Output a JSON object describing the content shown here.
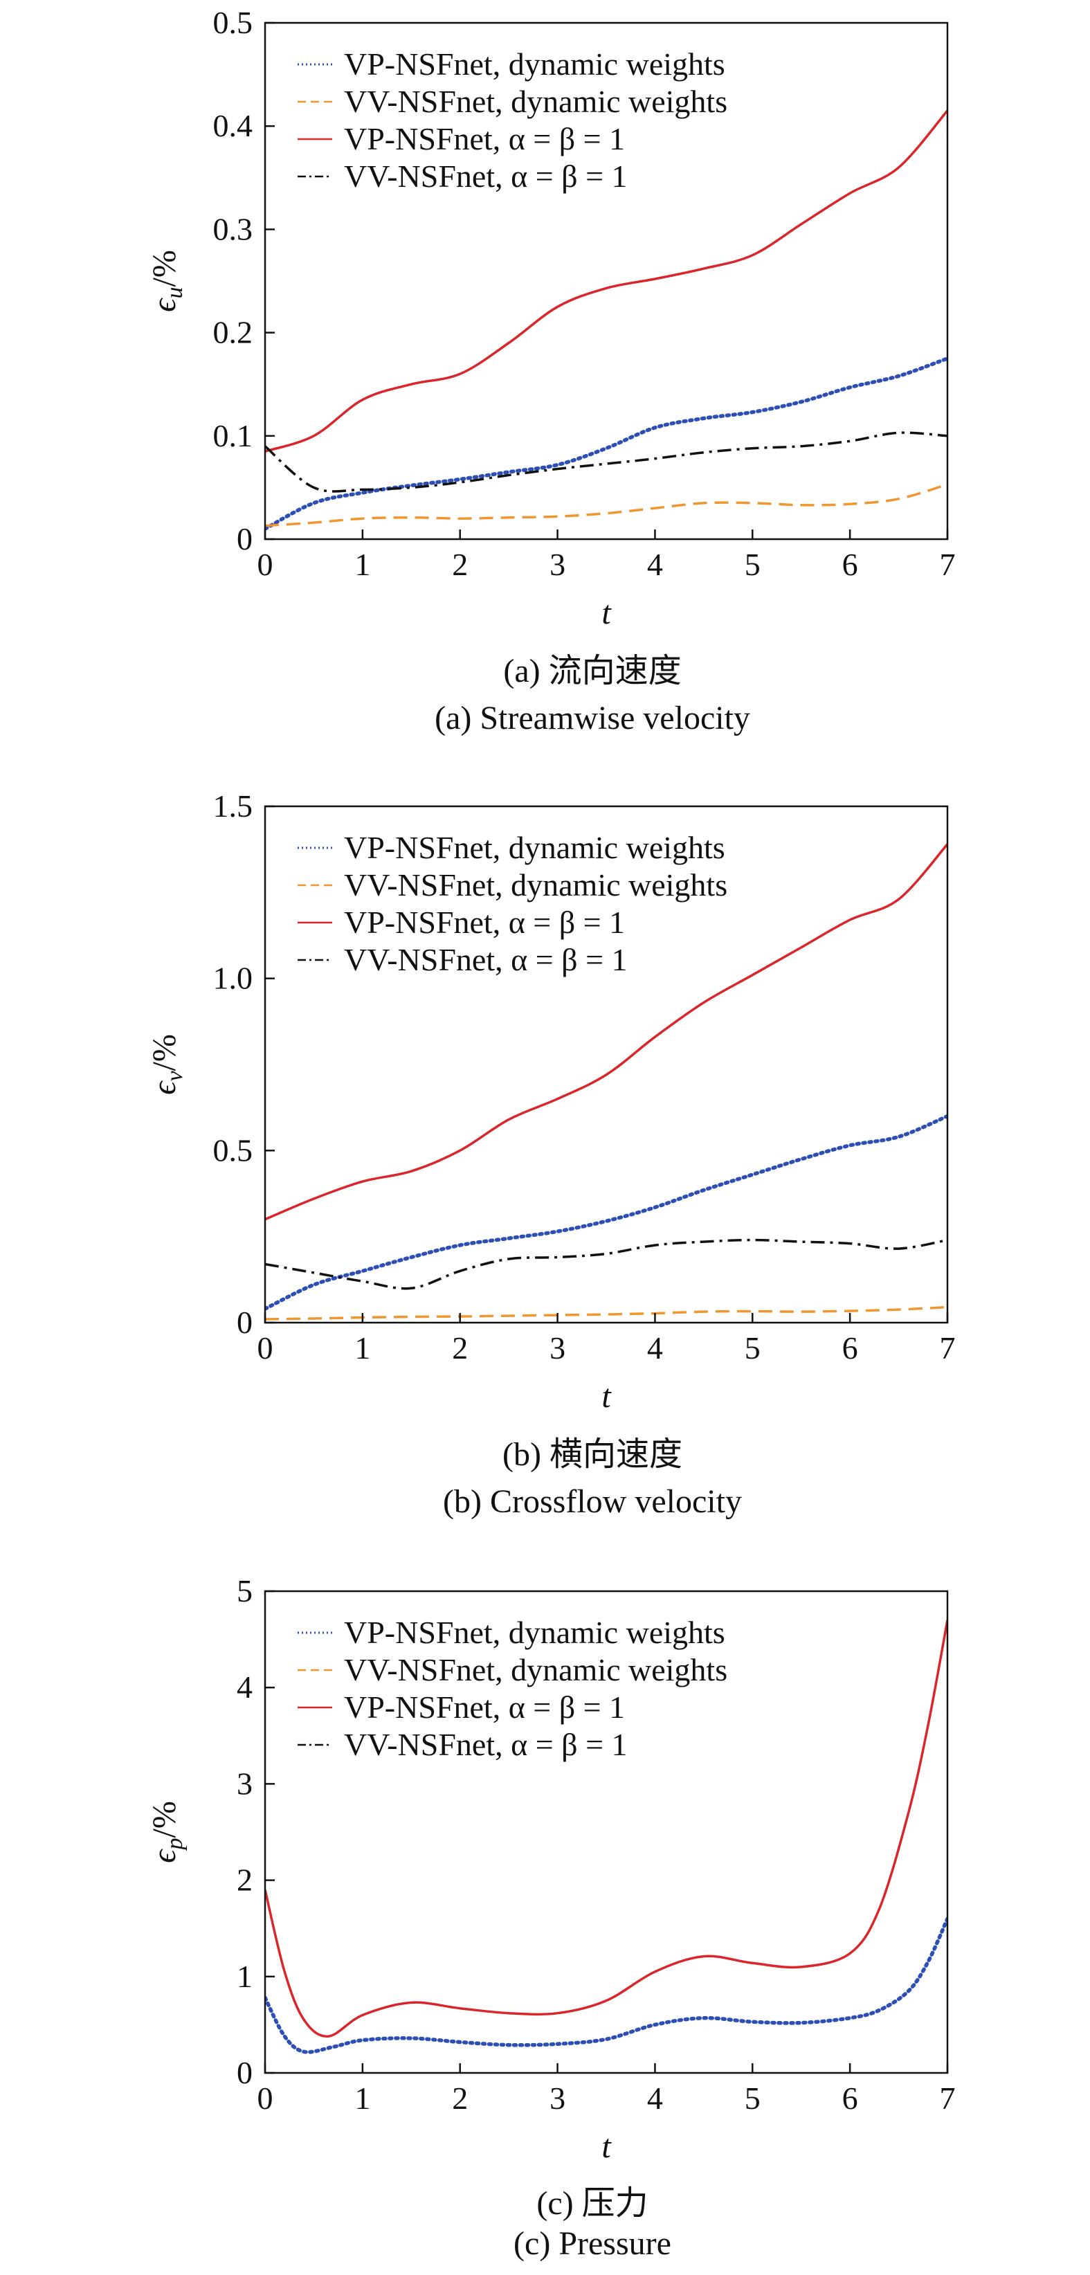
{
  "chart_data": [
    {
      "type": "line",
      "caption_zh": "(a) 流向速度",
      "caption_en": "(a) Streamwise velocity",
      "xlabel": "t",
      "ylabel": "ϵu/%",
      "ylabel_main": "ϵ",
      "ylabel_sub": "u",
      "ylabel_suffix": "/%",
      "xlim": [
        0,
        7
      ],
      "ylim": [
        0,
        0.5
      ],
      "xticks": [
        "0",
        "1",
        "2",
        "3",
        "4",
        "5",
        "6",
        "7"
      ],
      "yticks": [
        "0",
        "0.1",
        "0.2",
        "0.3",
        "0.4",
        "0.5"
      ],
      "grid": false,
      "legend_position": "top-left",
      "series": [
        {
          "name": "VP-NSFnet, dynamic weights",
          "color": "#2d4fb5",
          "style": "dotted",
          "x": [
            0,
            0.5,
            1,
            1.5,
            2,
            2.5,
            3,
            3.5,
            4,
            4.5,
            5,
            5.5,
            6,
            6.5,
            7
          ],
          "y": [
            0.01,
            0.035,
            0.045,
            0.052,
            0.058,
            0.065,
            0.072,
            0.088,
            0.108,
            0.117,
            0.123,
            0.133,
            0.147,
            0.158,
            0.175
          ]
        },
        {
          "name": "VV-NSFnet, dynamic weights",
          "color": "#f0962e",
          "style": "dashed",
          "x": [
            0,
            0.5,
            1,
            1.5,
            2,
            2.5,
            3,
            3.5,
            4,
            4.5,
            5,
            5.5,
            6,
            6.5,
            7
          ],
          "y": [
            0.013,
            0.016,
            0.02,
            0.021,
            0.02,
            0.021,
            0.022,
            0.025,
            0.03,
            0.035,
            0.035,
            0.033,
            0.034,
            0.039,
            0.053
          ]
        },
        {
          "name": "VP-NSFnet, α = β = 1",
          "color": "#d9262b",
          "style": "solid",
          "x": [
            0,
            0.5,
            1,
            1.5,
            2,
            2.5,
            3,
            3.5,
            4,
            4.5,
            5,
            5.5,
            6,
            6.5,
            7
          ],
          "y": [
            0.085,
            0.1,
            0.135,
            0.15,
            0.16,
            0.19,
            0.225,
            0.243,
            0.252,
            0.262,
            0.275,
            0.305,
            0.335,
            0.36,
            0.415
          ]
        },
        {
          "name": "VV-NSFnet, α = β = 1",
          "color": "#111111",
          "style": "dashdot",
          "x": [
            0,
            0.5,
            1,
            1.5,
            2,
            2.5,
            3,
            3.5,
            4,
            4.5,
            5,
            5.5,
            6,
            6.5,
            7
          ],
          "y": [
            0.09,
            0.05,
            0.048,
            0.05,
            0.055,
            0.062,
            0.068,
            0.073,
            0.078,
            0.084,
            0.088,
            0.09,
            0.095,
            0.103,
            0.1
          ]
        }
      ]
    },
    {
      "type": "line",
      "caption_zh": "(b) 横向速度",
      "caption_en": "(b) Crossflow velocity",
      "xlabel": "t",
      "ylabel": "ϵv/%",
      "ylabel_main": "ϵ",
      "ylabel_sub": "v",
      "ylabel_suffix": "/%",
      "xlim": [
        0,
        7
      ],
      "ylim": [
        0,
        1.5
      ],
      "xticks": [
        "0",
        "1",
        "2",
        "3",
        "4",
        "5",
        "6",
        "7"
      ],
      "yticks": [
        "0",
        "0.5",
        "1.0",
        "1.5"
      ],
      "grid": false,
      "legend_position": "top-left",
      "series": [
        {
          "name": "VP-NSFnet, dynamic weights",
          "color": "#2d4fb5",
          "style": "dotted",
          "x": [
            0,
            0.5,
            1,
            1.5,
            2,
            2.5,
            3,
            3.5,
            4,
            4.5,
            5,
            5.5,
            6,
            6.5,
            7
          ],
          "y": [
            0.04,
            0.11,
            0.15,
            0.19,
            0.225,
            0.245,
            0.265,
            0.295,
            0.335,
            0.385,
            0.43,
            0.475,
            0.515,
            0.54,
            0.6
          ]
        },
        {
          "name": "VV-NSFnet, dynamic weights",
          "color": "#f0962e",
          "style": "dashed",
          "x": [
            0,
            0.5,
            1,
            1.5,
            2,
            2.5,
            3,
            3.5,
            4,
            4.5,
            5,
            5.5,
            6,
            6.5,
            7
          ],
          "y": [
            0.01,
            0.012,
            0.015,
            0.017,
            0.018,
            0.02,
            0.022,
            0.024,
            0.027,
            0.032,
            0.033,
            0.032,
            0.034,
            0.038,
            0.045
          ]
        },
        {
          "name": "VP-NSFnet, α = β = 1",
          "color": "#d9262b",
          "style": "solid",
          "x": [
            0,
            0.5,
            1,
            1.5,
            2,
            2.5,
            3,
            3.5,
            4,
            4.5,
            5,
            5.5,
            6,
            6.5,
            7
          ],
          "y": [
            0.3,
            0.36,
            0.41,
            0.44,
            0.5,
            0.59,
            0.65,
            0.72,
            0.83,
            0.93,
            1.01,
            1.09,
            1.17,
            1.23,
            1.39
          ]
        },
        {
          "name": "VV-NSFnet, α = β = 1",
          "color": "#111111",
          "style": "dashdot",
          "x": [
            0,
            0.5,
            1,
            1.5,
            2,
            2.5,
            3,
            3.5,
            4,
            4.5,
            5,
            5.5,
            6,
            6.5,
            7
          ],
          "y": [
            0.17,
            0.145,
            0.12,
            0.1,
            0.15,
            0.185,
            0.19,
            0.2,
            0.225,
            0.235,
            0.24,
            0.235,
            0.23,
            0.215,
            0.24
          ]
        }
      ]
    },
    {
      "type": "line",
      "caption_zh": "(c) 压力",
      "caption_en": "(c) Pressure",
      "xlabel": "t",
      "ylabel": "ϵp/%",
      "ylabel_main": "ϵ",
      "ylabel_sub": "p",
      "ylabel_suffix": "/%",
      "xlim": [
        0,
        7
      ],
      "ylim": [
        0,
        5
      ],
      "xticks": [
        "0",
        "1",
        "2",
        "3",
        "4",
        "5",
        "6",
        "7"
      ],
      "yticks": [
        "0",
        "1",
        "2",
        "3",
        "4",
        "5"
      ],
      "grid": false,
      "legend_position": "top-left",
      "series": [
        {
          "name": "VP-NSFnet, dynamic weights",
          "color": "#2d4fb5",
          "style": "dotted",
          "x": [
            0,
            0.2,
            0.4,
            0.7,
            1,
            1.5,
            2,
            2.5,
            3,
            3.5,
            4,
            4.5,
            5,
            5.5,
            6,
            6.3,
            6.6,
            6.8,
            7
          ],
          "y": [
            0.78,
            0.38,
            0.22,
            0.27,
            0.34,
            0.36,
            0.32,
            0.29,
            0.3,
            0.35,
            0.5,
            0.57,
            0.53,
            0.52,
            0.57,
            0.65,
            0.85,
            1.15,
            1.6
          ]
        },
        {
          "name": "VV-NSFnet, dynamic weights",
          "color": "#f0962e",
          "style": "dashed",
          "x": [],
          "y": []
        },
        {
          "name": "VP-NSFnet, α = β = 1",
          "color": "#d9262b",
          "style": "solid",
          "x": [
            0,
            0.2,
            0.4,
            0.65,
            1,
            1.5,
            2,
            2.5,
            3,
            3.5,
            4,
            4.5,
            5,
            5.5,
            6,
            6.3,
            6.6,
            6.8,
            7
          ],
          "y": [
            1.9,
            1.05,
            0.55,
            0.38,
            0.6,
            0.73,
            0.67,
            0.62,
            0.62,
            0.75,
            1.05,
            1.21,
            1.14,
            1.1,
            1.24,
            1.7,
            2.7,
            3.6,
            4.7
          ]
        },
        {
          "name": "VV-NSFnet, α = β = 1",
          "color": "#111111",
          "style": "dashdot",
          "x": [],
          "y": []
        }
      ]
    }
  ]
}
